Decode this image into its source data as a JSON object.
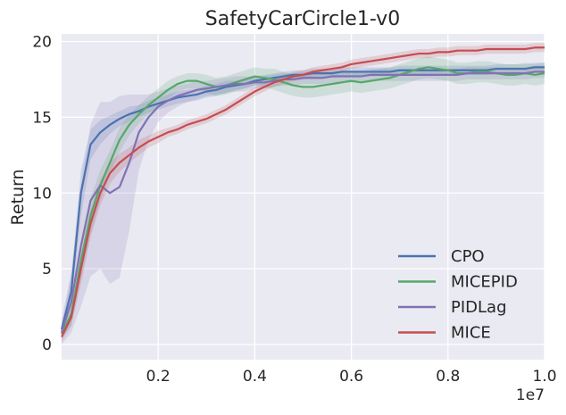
{
  "chart_data": {
    "type": "line",
    "title": "SafetyCarCircle1-v0",
    "xlabel": "",
    "ylabel": "Return",
    "x_multiplier": "1e7",
    "xlim": [
      0.0,
      1.0
    ],
    "ylim": [
      -1.0,
      20.5
    ],
    "x_ticks": [
      0.2,
      0.4,
      0.6,
      0.8,
      1.0
    ],
    "x_tick_labels": [
      "0.2",
      "0.4",
      "0.6",
      "0.8",
      "1.0"
    ],
    "y_ticks": [
      0,
      5,
      10,
      15,
      20
    ],
    "y_tick_labels": [
      "0",
      "5",
      "10",
      "15",
      "20"
    ],
    "grid": true,
    "legend_position": "bottom-right",
    "x": [
      0.0,
      0.02,
      0.04,
      0.06,
      0.08,
      0.1,
      0.12,
      0.14,
      0.16,
      0.18,
      0.2,
      0.22,
      0.24,
      0.26,
      0.28,
      0.3,
      0.32,
      0.34,
      0.36,
      0.38,
      0.4,
      0.42,
      0.44,
      0.46,
      0.48,
      0.5,
      0.52,
      0.54,
      0.56,
      0.58,
      0.6,
      0.62,
      0.64,
      0.66,
      0.68,
      0.7,
      0.72,
      0.74,
      0.76,
      0.78,
      0.8,
      0.82,
      0.84,
      0.86,
      0.88,
      0.9,
      0.92,
      0.94,
      0.96,
      0.98,
      1.0
    ],
    "series": [
      {
        "name": "CPO",
        "color": "#4c72b0",
        "values": [
          1.0,
          3.5,
          10.0,
          13.2,
          14.0,
          14.5,
          14.9,
          15.2,
          15.4,
          15.7,
          15.9,
          16.1,
          16.3,
          16.4,
          16.5,
          16.7,
          16.8,
          17.0,
          17.1,
          17.2,
          17.4,
          17.5,
          17.6,
          17.7,
          17.8,
          17.8,
          17.9,
          17.9,
          17.9,
          18.0,
          18.0,
          18.0,
          18.0,
          18.0,
          18.0,
          18.1,
          18.1,
          18.1,
          18.1,
          18.1,
          18.1,
          18.1,
          18.1,
          18.1,
          18.1,
          18.2,
          18.2,
          18.2,
          18.2,
          18.3,
          18.3
        ],
        "band": [
          0.3,
          1.0,
          1.5,
          1.0,
          0.8,
          0.6,
          0.5,
          0.5,
          0.4,
          0.4,
          0.4,
          0.4,
          0.4,
          0.4,
          0.4,
          0.4,
          0.4,
          0.4,
          0.3,
          0.3,
          0.3,
          0.3,
          0.3,
          0.3,
          0.3,
          0.3,
          0.3,
          0.3,
          0.3,
          0.3,
          0.3,
          0.3,
          0.3,
          0.3,
          0.3,
          0.3,
          0.3,
          0.3,
          0.3,
          0.3,
          0.3,
          0.3,
          0.3,
          0.3,
          0.3,
          0.3,
          0.3,
          0.3,
          0.3,
          0.3,
          0.3
        ]
      },
      {
        "name": "MICEPID",
        "color": "#55a868",
        "values": [
          0.7,
          2.0,
          5.5,
          8.5,
          10.5,
          12.0,
          13.5,
          14.5,
          15.2,
          15.8,
          16.3,
          16.8,
          17.2,
          17.4,
          17.4,
          17.2,
          17.0,
          17.1,
          17.3,
          17.5,
          17.7,
          17.6,
          17.5,
          17.3,
          17.1,
          17.0,
          17.0,
          17.1,
          17.2,
          17.3,
          17.4,
          17.3,
          17.4,
          17.5,
          17.6,
          17.8,
          18.0,
          18.2,
          18.3,
          18.2,
          18.1,
          17.9,
          17.9,
          18.0,
          18.0,
          17.9,
          17.8,
          17.8,
          17.9,
          17.8,
          17.9
        ],
        "band": [
          0.3,
          0.8,
          1.2,
          1.2,
          1.0,
          0.8,
          0.8,
          0.7,
          0.6,
          0.6,
          0.6,
          0.6,
          0.5,
          0.5,
          0.5,
          0.6,
          0.6,
          0.6,
          0.6,
          0.6,
          0.6,
          0.6,
          0.7,
          0.7,
          0.7,
          0.7,
          0.7,
          0.7,
          0.7,
          0.7,
          0.7,
          0.7,
          0.7,
          0.7,
          0.7,
          0.7,
          0.7,
          0.7,
          0.7,
          0.7,
          0.7,
          0.7,
          0.7,
          0.7,
          0.7,
          0.7,
          0.7,
          0.7,
          0.7,
          0.7,
          0.7
        ]
      },
      {
        "name": "PIDLag",
        "color": "#8172b2",
        "values": [
          0.8,
          2.8,
          6.5,
          9.5,
          10.5,
          10.0,
          10.4,
          12.0,
          14.0,
          15.0,
          15.7,
          16.1,
          16.4,
          16.6,
          16.8,
          16.9,
          17.0,
          17.1,
          17.2,
          17.2,
          17.3,
          17.3,
          17.4,
          17.5,
          17.5,
          17.6,
          17.6,
          17.6,
          17.7,
          17.7,
          17.7,
          17.7,
          17.8,
          17.8,
          17.8,
          17.8,
          17.8,
          17.8,
          17.8,
          17.8,
          17.8,
          17.8,
          17.9,
          17.9,
          17.9,
          17.9,
          17.9,
          17.9,
          17.9,
          18.0,
          18.0
        ],
        "band": [
          0.8,
          2.0,
          4.0,
          5.0,
          5.5,
          6.0,
          6.0,
          4.5,
          2.5,
          1.5,
          1.0,
          0.8,
          0.7,
          0.6,
          0.6,
          0.5,
          0.5,
          0.5,
          0.5,
          0.5,
          0.4,
          0.4,
          0.4,
          0.4,
          0.4,
          0.4,
          0.4,
          0.4,
          0.4,
          0.4,
          0.4,
          0.4,
          0.4,
          0.4,
          0.4,
          0.4,
          0.4,
          0.4,
          0.4,
          0.4,
          0.4,
          0.4,
          0.4,
          0.4,
          0.4,
          0.4,
          0.4,
          0.4,
          0.4,
          0.4,
          0.4
        ]
      },
      {
        "name": "MICE",
        "color": "#c44e52",
        "values": [
          0.5,
          1.8,
          5.0,
          8.0,
          10.0,
          11.3,
          12.0,
          12.5,
          13.0,
          13.4,
          13.7,
          14.0,
          14.2,
          14.5,
          14.7,
          14.9,
          15.2,
          15.5,
          15.9,
          16.3,
          16.7,
          17.0,
          17.3,
          17.5,
          17.7,
          17.8,
          18.0,
          18.1,
          18.2,
          18.3,
          18.5,
          18.6,
          18.7,
          18.8,
          18.9,
          19.0,
          19.1,
          19.2,
          19.2,
          19.3,
          19.3,
          19.4,
          19.4,
          19.4,
          19.5,
          19.5,
          19.5,
          19.5,
          19.5,
          19.6,
          19.6
        ],
        "band": [
          0.3,
          0.5,
          1.0,
          0.9,
          0.8,
          0.7,
          0.6,
          0.5,
          0.5,
          0.4,
          0.4,
          0.3,
          0.3,
          0.3,
          0.3,
          0.3,
          0.3,
          0.3,
          0.3,
          0.3,
          0.3,
          0.3,
          0.3,
          0.3,
          0.3,
          0.3,
          0.3,
          0.3,
          0.3,
          0.3,
          0.3,
          0.3,
          0.3,
          0.3,
          0.3,
          0.3,
          0.3,
          0.3,
          0.3,
          0.3,
          0.3,
          0.3,
          0.3,
          0.3,
          0.3,
          0.3,
          0.3,
          0.3,
          0.3,
          0.3,
          0.3
        ]
      }
    ]
  }
}
